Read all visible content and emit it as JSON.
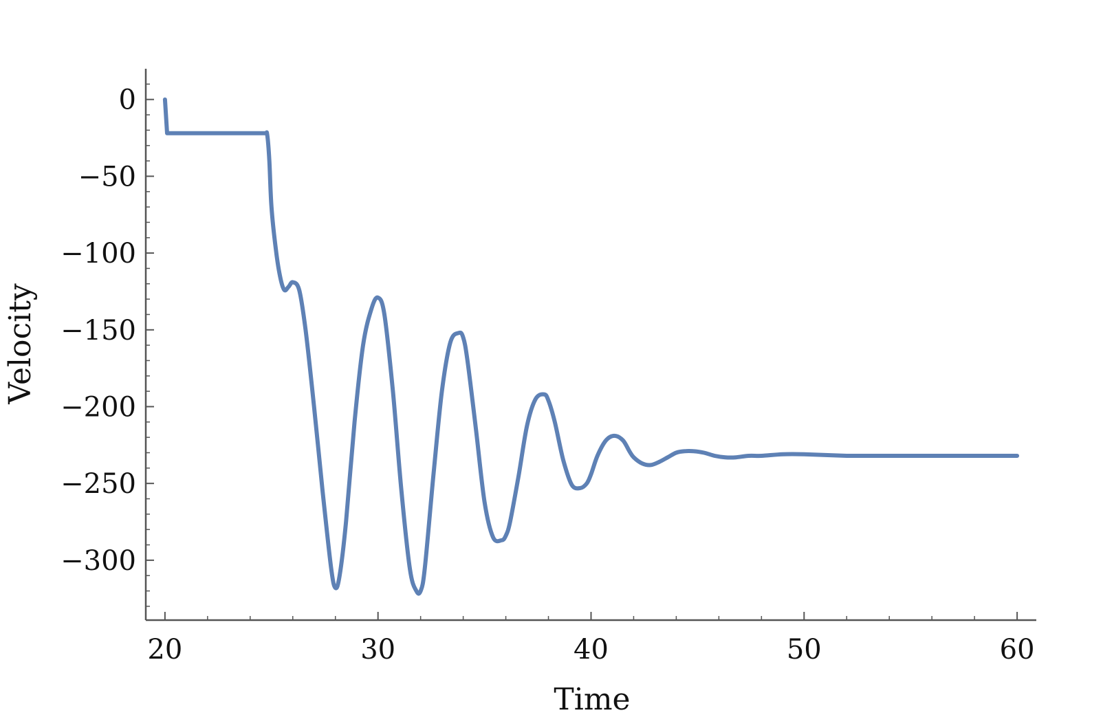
{
  "chart_data": {
    "type": "line",
    "title": "",
    "xlabel": "Time",
    "ylabel": "Velocity",
    "xlim": [
      19.1,
      60.9
    ],
    "ylim": [
      -339,
      20
    ],
    "x_ticks": [
      20,
      30,
      40,
      50,
      60
    ],
    "x_tick_labels": [
      "20",
      "30",
      "40",
      "50",
      "60"
    ],
    "y_ticks": [
      0,
      -50,
      -100,
      -150,
      -200,
      -250,
      -300
    ],
    "y_tick_labels": [
      "0",
      "−50",
      "−100",
      "−150",
      "−200",
      "−250",
      "−300"
    ],
    "grid": false,
    "legend": "none",
    "series": [
      {
        "color": "#5e81b5",
        "x": [
          20.0,
          20.1,
          24.7,
          24.8,
          24.9,
          25.0,
          25.2,
          25.4,
          25.6,
          25.8,
          26.0,
          26.3,
          26.6,
          27.0,
          27.4,
          27.8,
          28.0,
          28.2,
          28.5,
          28.9,
          29.3,
          29.7,
          30.0,
          30.3,
          30.7,
          31.1,
          31.5,
          31.8,
          32.0,
          32.2,
          32.6,
          33.0,
          33.4,
          33.8,
          34.0,
          34.2,
          34.6,
          35.0,
          35.4,
          35.8,
          36.0,
          36.2,
          36.6,
          37.0,
          37.4,
          37.8,
          38.0,
          38.3,
          38.7,
          39.1,
          39.5,
          39.8,
          40.0,
          40.3,
          40.7,
          41.1,
          41.5,
          41.8,
          42.0,
          42.4,
          42.8,
          43.2,
          43.6,
          44.0,
          44.4,
          44.8,
          45.3,
          45.8,
          46.3,
          46.8,
          47.4,
          48.0,
          49.0,
          50.0,
          52.0,
          55.0,
          60.0
        ],
        "values": [
          0,
          -22,
          -22,
          -23,
          -40,
          -70,
          -97,
          -115,
          -124,
          -122,
          -119,
          -124,
          -150,
          -200,
          -255,
          -305,
          -318,
          -310,
          -275,
          -210,
          -160,
          -136,
          -129,
          -140,
          -190,
          -255,
          -306,
          -320,
          -320,
          -305,
          -245,
          -190,
          -158,
          -152,
          -155,
          -170,
          -215,
          -262,
          -285,
          -287,
          -284,
          -275,
          -245,
          -212,
          -195,
          -192,
          -196,
          -210,
          -235,
          -251,
          -253,
          -250,
          -244,
          -232,
          -222,
          -219,
          -222,
          -229,
          -233,
          -237,
          -238,
          -236,
          -233,
          -230,
          -229,
          -229,
          -230,
          -232,
          -233,
          -233,
          -232,
          -232,
          -231,
          -231,
          -232,
          -232,
          -232
        ]
      }
    ]
  }
}
